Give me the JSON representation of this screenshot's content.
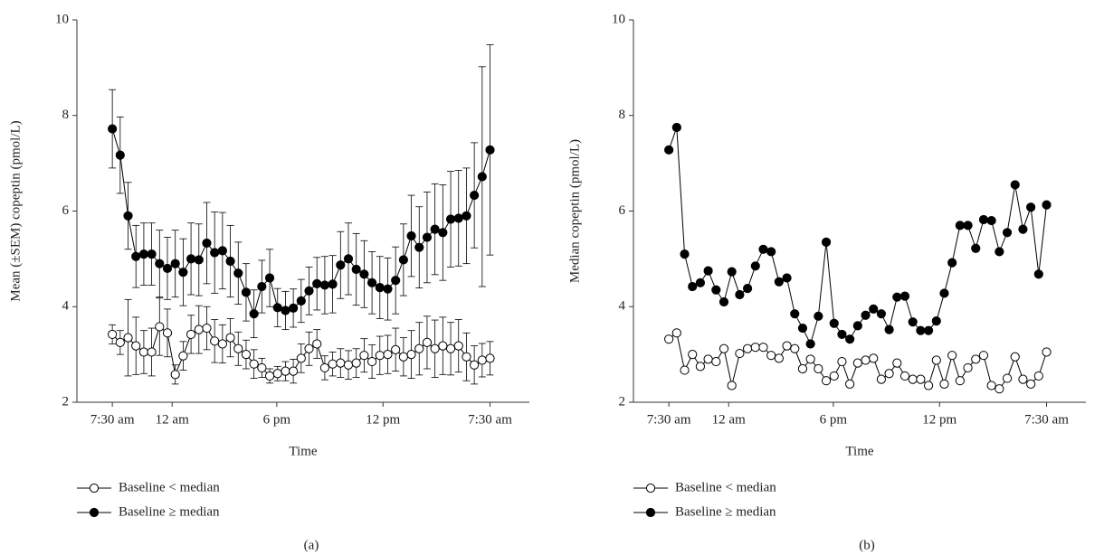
{
  "chart_data": [
    {
      "type": "line",
      "y_label": "Mean (±SEM) copeptin (pmol/L)",
      "x_label": "Time",
      "caption": "(a)",
      "x": [
        0,
        1,
        2,
        3,
        4,
        5,
        6,
        7,
        8,
        9,
        10,
        11,
        12,
        13,
        14,
        15,
        16,
        17,
        18,
        19,
        20,
        21,
        22,
        23,
        24,
        25,
        26,
        27,
        28,
        29,
        30,
        31,
        32,
        33,
        34,
        35,
        36,
        37,
        38,
        39,
        40,
        41,
        42,
        43,
        44,
        45,
        46,
        47,
        48
      ],
      "xlim": [
        -4.5,
        53
      ],
      "xticks": [
        {
          "value": 0,
          "label": "7:30 am"
        },
        {
          "value": 7.6,
          "label": "12 am"
        },
        {
          "value": 20.9,
          "label": "6 pm"
        },
        {
          "value": 34.4,
          "label": "12 pm"
        },
        {
          "value": 48,
          "label": "7:30 am"
        }
      ],
      "ylim": [
        2,
        10
      ],
      "yticks": [
        2,
        4,
        6,
        8,
        10
      ],
      "series": [
        {
          "name": "Baseline < median",
          "color": "#000000",
          "marker": "open",
          "values": [
            3.42,
            3.25,
            3.35,
            3.18,
            3.05,
            3.05,
            3.58,
            3.45,
            2.58,
            2.97,
            3.42,
            3.52,
            3.55,
            3.28,
            3.22,
            3.35,
            3.12,
            3.0,
            2.8,
            2.72,
            2.55,
            2.6,
            2.65,
            2.65,
            2.92,
            3.12,
            3.22,
            2.72,
            2.8,
            2.82,
            2.78,
            2.82,
            2.98,
            2.85,
            2.98,
            3.0,
            3.1,
            2.95,
            3.0,
            3.12,
            3.25,
            3.12,
            3.18,
            3.12,
            3.18,
            2.95,
            2.78,
            2.88,
            2.92
          ],
          "errors": [
            0.2,
            0.25,
            0.8,
            0.6,
            0.45,
            0.5,
            0.6,
            0.5,
            0.2,
            0.3,
            0.4,
            0.5,
            0.45,
            0.45,
            0.4,
            0.4,
            0.35,
            0.3,
            0.3,
            0.2,
            0.15,
            0.15,
            0.2,
            0.25,
            0.3,
            0.35,
            0.3,
            0.25,
            0.25,
            0.3,
            0.3,
            0.3,
            0.35,
            0.35,
            0.4,
            0.4,
            0.45,
            0.4,
            0.5,
            0.55,
            0.55,
            0.6,
            0.6,
            0.55,
            0.55,
            0.5,
            0.4,
            0.35,
            0.35
          ]
        },
        {
          "name": "Baseline ≥ median",
          "color": "#000000",
          "marker": "filled",
          "values": [
            7.72,
            7.17,
            5.9,
            5.05,
            5.1,
            5.1,
            4.9,
            4.8,
            4.9,
            4.72,
            5.0,
            4.98,
            5.33,
            5.13,
            5.17,
            4.95,
            4.7,
            4.3,
            3.85,
            4.42,
            4.6,
            3.98,
            3.92,
            3.97,
            4.12,
            4.33,
            4.48,
            4.45,
            4.47,
            4.87,
            5.0,
            4.78,
            4.68,
            4.5,
            4.4,
            4.37,
            4.55,
            4.98,
            5.48,
            5.24,
            5.45,
            5.62,
            5.55,
            5.83,
            5.85,
            5.9,
            6.33,
            6.72,
            7.28
          ],
          "errors": [
            0.82,
            0.8,
            0.7,
            0.65,
            0.65,
            0.65,
            0.7,
            0.65,
            0.7,
            0.7,
            0.75,
            0.75,
            0.85,
            0.85,
            0.8,
            0.75,
            0.65,
            0.6,
            0.5,
            0.55,
            0.6,
            0.4,
            0.4,
            0.4,
            0.45,
            0.5,
            0.55,
            0.6,
            0.6,
            0.7,
            0.75,
            0.75,
            0.7,
            0.65,
            0.65,
            0.65,
            0.7,
            0.75,
            0.85,
            0.85,
            0.95,
            0.95,
            1.0,
            1.0,
            1.0,
            1.0,
            1.1,
            2.3,
            2.2
          ]
        }
      ]
    },
    {
      "type": "line",
      "y_label": "Median copeptin (pmol/L)",
      "x_label": "Time",
      "caption": "(b)",
      "x": [
        0,
        1,
        2,
        3,
        4,
        5,
        6,
        7,
        8,
        9,
        10,
        11,
        12,
        13,
        14,
        15,
        16,
        17,
        18,
        19,
        20,
        21,
        22,
        23,
        24,
        25,
        26,
        27,
        28,
        29,
        30,
        31,
        32,
        33,
        34,
        35,
        36,
        37,
        38,
        39,
        40,
        41,
        42,
        43,
        44,
        45,
        46,
        47,
        48
      ],
      "xlim": [
        -4.5,
        53
      ],
      "xticks": [
        {
          "value": 0,
          "label": "7:30 am"
        },
        {
          "value": 7.6,
          "label": "12 am"
        },
        {
          "value": 20.9,
          "label": "6 pm"
        },
        {
          "value": 34.4,
          "label": "12 pm"
        },
        {
          "value": 48,
          "label": "7:30 am"
        }
      ],
      "ylim": [
        2,
        10
      ],
      "yticks": [
        2,
        4,
        6,
        8,
        10
      ],
      "series": [
        {
          "name": "Baseline < median",
          "color": "#000000",
          "marker": "open",
          "values": [
            3.32,
            3.45,
            2.67,
            3.0,
            2.75,
            2.9,
            2.85,
            3.12,
            2.35,
            3.02,
            3.12,
            3.15,
            3.15,
            2.98,
            2.92,
            3.18,
            3.12,
            2.7,
            2.9,
            2.7,
            2.45,
            2.55,
            2.85,
            2.38,
            2.82,
            2.88,
            2.92,
            2.48,
            2.6,
            2.82,
            2.55,
            2.48,
            2.48,
            2.35,
            2.88,
            2.38,
            2.98,
            2.45,
            2.72,
            2.9,
            2.98,
            2.35,
            2.28,
            2.5,
            2.95,
            2.48,
            2.38,
            2.55,
            3.05
          ]
        },
        {
          "name": "Baseline ≥ median",
          "color": "#000000",
          "marker": "filled",
          "values": [
            7.28,
            7.75,
            5.1,
            4.42,
            4.5,
            4.75,
            4.35,
            4.1,
            4.73,
            4.25,
            4.38,
            4.85,
            5.2,
            5.15,
            4.52,
            4.6,
            3.85,
            3.55,
            3.22,
            3.8,
            5.35,
            3.65,
            3.42,
            3.32,
            3.6,
            3.82,
            3.95,
            3.85,
            3.52,
            4.2,
            4.22,
            3.68,
            3.5,
            3.5,
            3.7,
            4.28,
            4.92,
            5.7,
            5.7,
            5.22,
            5.82,
            5.8,
            5.15,
            5.55,
            6.55,
            5.62,
            6.08,
            4.68,
            6.13
          ]
        }
      ]
    }
  ]
}
